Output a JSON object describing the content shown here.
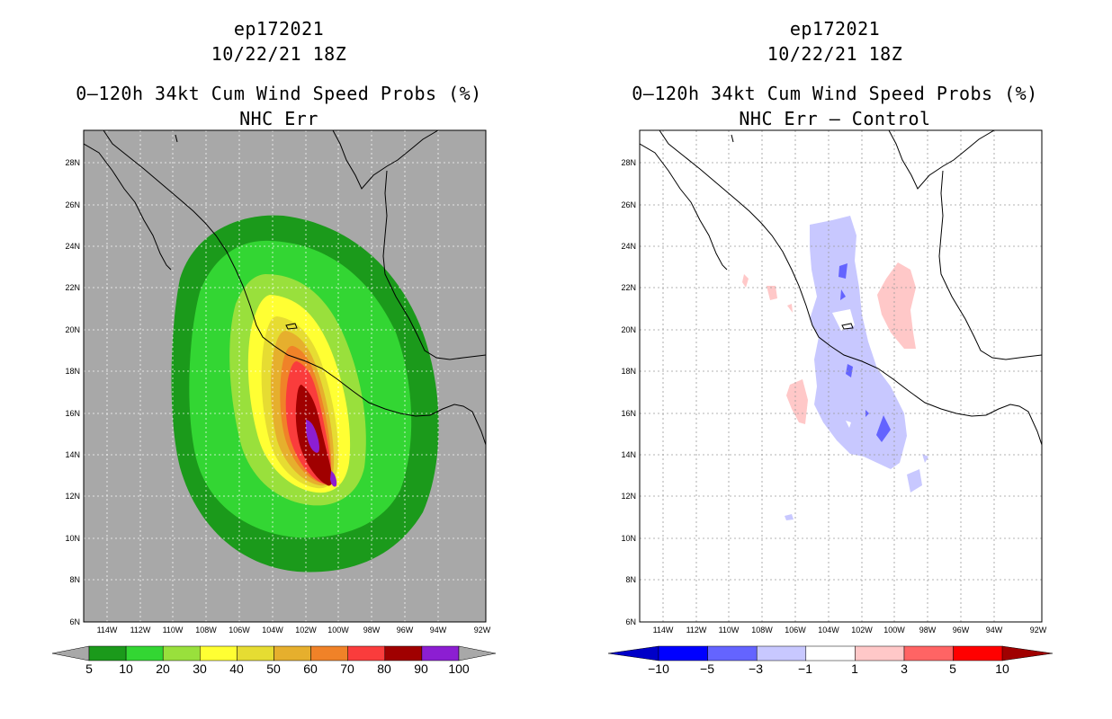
{
  "left": {
    "storm_id": "ep172021",
    "datetime": "10/22/21 18Z",
    "title": "0–120h 34kt Cum Wind Speed Probs (%)",
    "subtitle": "NHC Err",
    "colorbar_labels": [
      "5",
      "10",
      "20",
      "30",
      "40",
      "50",
      "60",
      "70",
      "80",
      "90",
      "100"
    ],
    "colors": [
      "#1b9a1b",
      "#33d633",
      "#99e03c",
      "#ffff33",
      "#e6dc32",
      "#e6af2d",
      "#f08228",
      "#fa3c3c",
      "#a00000",
      "#8c1ed2"
    ]
  },
  "right": {
    "storm_id": "ep172021",
    "datetime": "10/22/21 18Z",
    "title": "0–120h 34kt Cum Wind Speed Probs (%)",
    "subtitle": "NHC Err – Control",
    "colorbar_labels": [
      "−10",
      "−5",
      "−3",
      "−1",
      "1",
      "3",
      "5",
      "10"
    ],
    "colors": [
      "#0000c8",
      "#0000ff",
      "#6464ff",
      "#c8c8ff",
      "#ffffff",
      "#ffc8c8",
      "#ff6464",
      "#ff0000",
      "#a00000"
    ]
  },
  "axes": {
    "lon_labels": [
      "114W",
      "112W",
      "110W",
      "108W",
      "106W",
      "104W",
      "102W",
      "100W",
      "98W",
      "96W",
      "94W",
      "92W"
    ],
    "lat_labels": [
      "6N",
      "8N",
      "10N",
      "12N",
      "14N",
      "16N",
      "18N",
      "20N",
      "22N",
      "24N",
      "26N",
      "28N"
    ]
  }
}
